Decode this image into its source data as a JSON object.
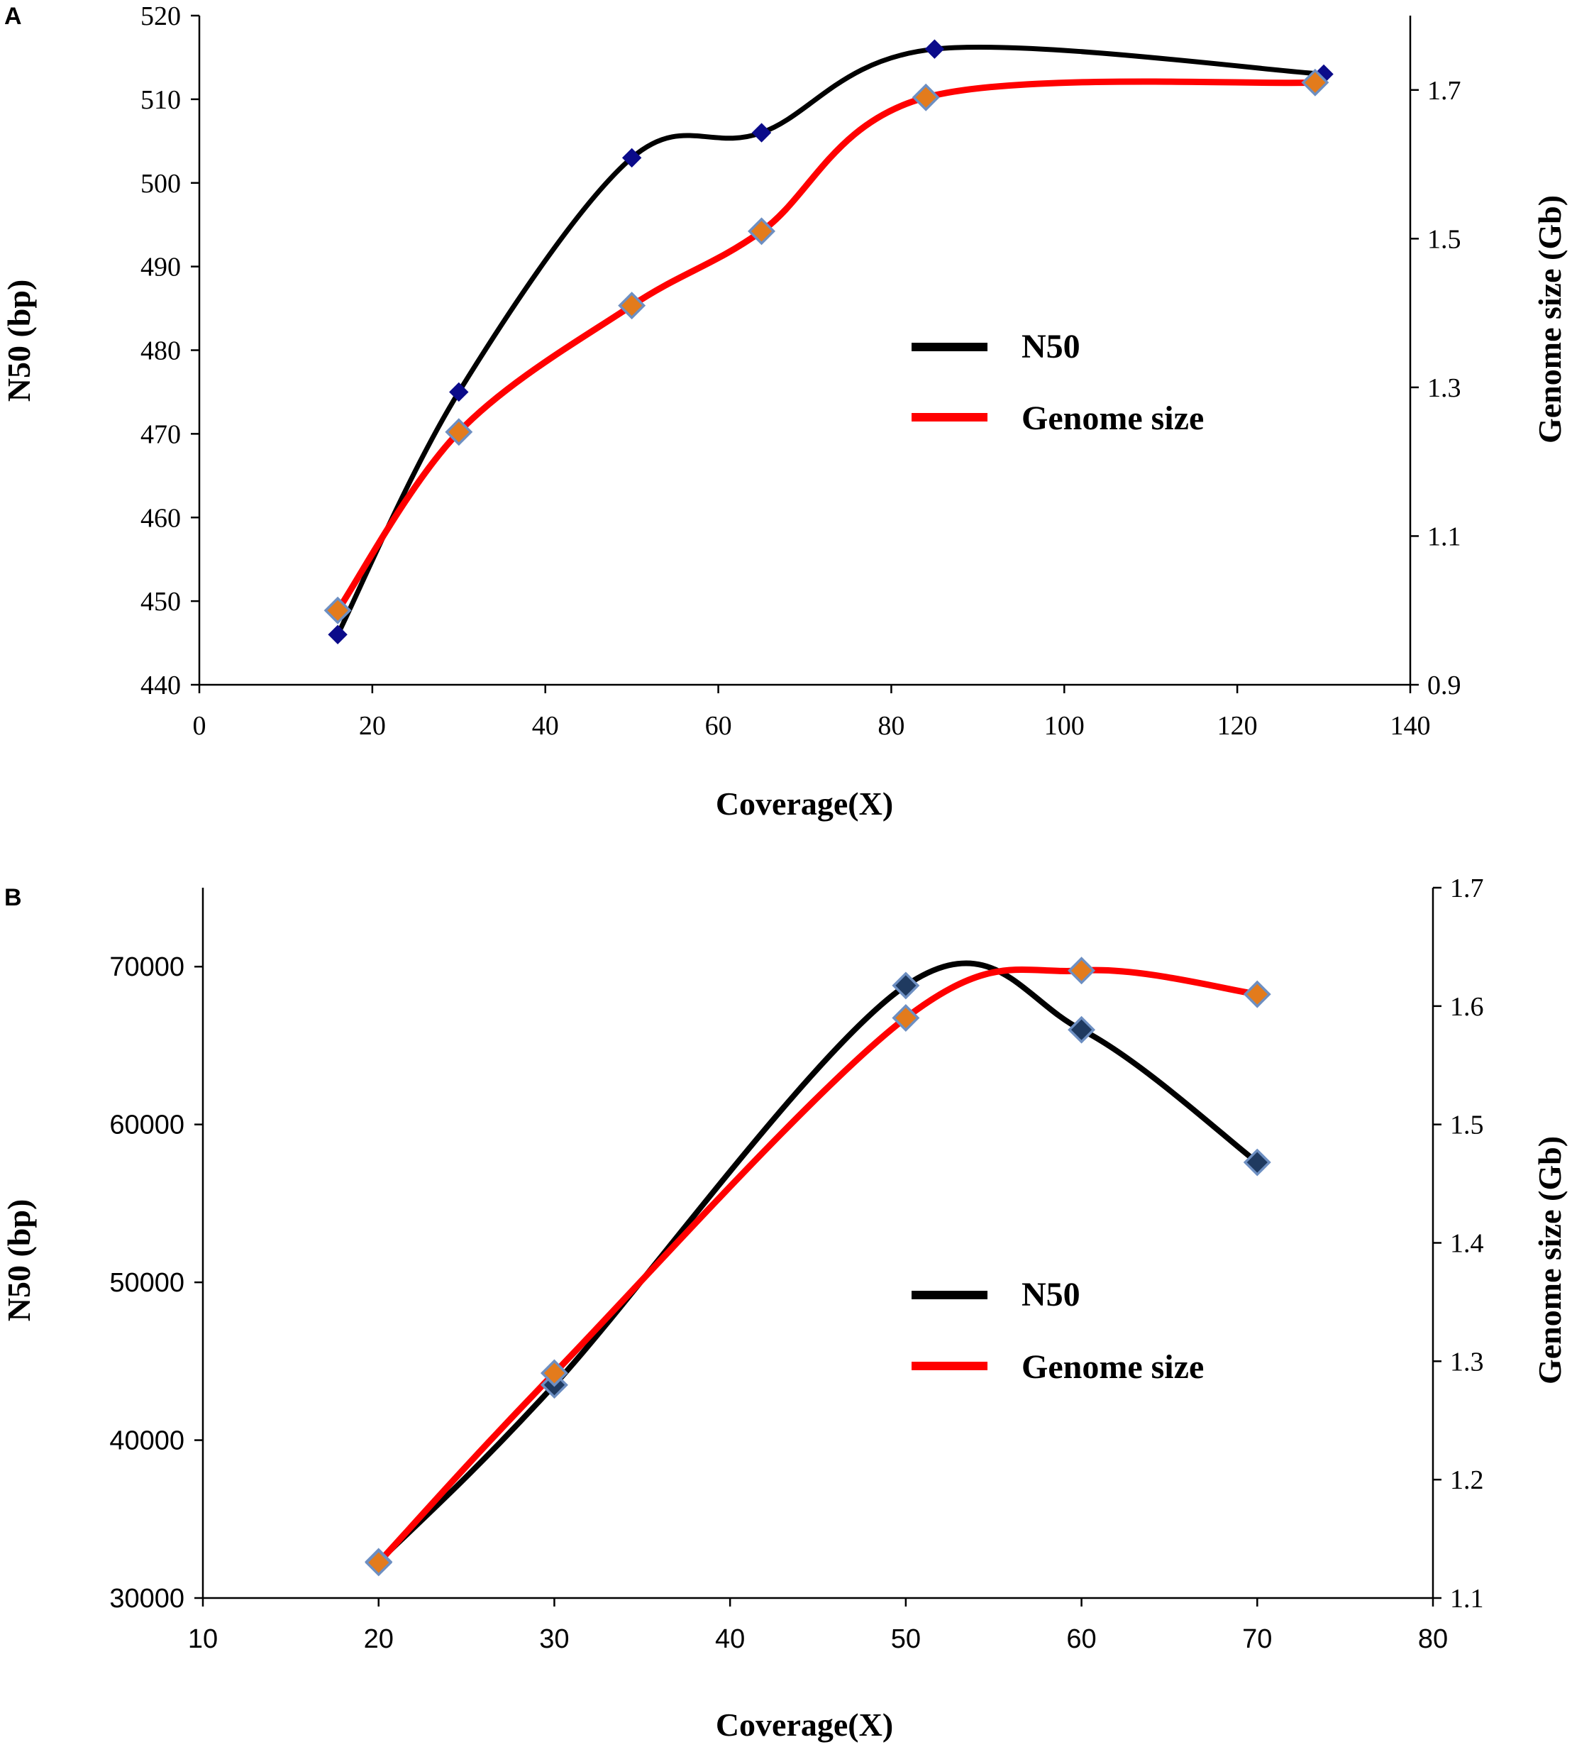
{
  "chart_data": [
    {
      "panel": "A",
      "type": "line",
      "title": "",
      "xlabel": "Coverage(X)",
      "ylabel": "N50 (bp)",
      "y2label": "Genome size (Gb)",
      "xlim": [
        0,
        140
      ],
      "ylim": [
        440,
        520
      ],
      "y2lim": [
        0.9,
        1.8
      ],
      "xticks": [
        "0",
        "20",
        "40",
        "60",
        "80",
        "100",
        "120",
        "140"
      ],
      "yticks": [
        "440",
        "450",
        "460",
        "470",
        "480",
        "490",
        "500",
        "510",
        "520"
      ],
      "y2ticks": [
        "0.9",
        "1.1",
        "1.3",
        "1.5",
        "1.7"
      ],
      "legend_position": "center-right",
      "series": [
        {
          "name": "N50",
          "axis": "left",
          "color": "#000000",
          "marker_color": "#0b0b8a",
          "points": [
            [
              16,
              446
            ],
            [
              30,
              475
            ],
            [
              50,
              503
            ],
            [
              65,
              506
            ],
            [
              85,
              516
            ],
            [
              130,
              513
            ]
          ]
        },
        {
          "name": "Genome size",
          "axis": "right",
          "color": "#ff0000",
          "marker_color": "#e37b1c",
          "points": [
            [
              16,
              1.0
            ],
            [
              30,
              1.24
            ],
            [
              50,
              1.41
            ],
            [
              65,
              1.51
            ],
            [
              84,
              1.69
            ],
            [
              129,
              1.71
            ]
          ]
        }
      ]
    },
    {
      "panel": "B",
      "type": "line",
      "title": "",
      "xlabel": "Coverage(X)",
      "ylabel": "N50 (bp)",
      "y2label": "Genome size (Gb)",
      "xlim": [
        10,
        80
      ],
      "ylim": [
        30000,
        75000
      ],
      "y2lim": [
        1.1,
        1.7
      ],
      "xticks": [
        "10",
        "20",
        "30",
        "40",
        "50",
        "60",
        "70",
        "80"
      ],
      "yticks": [
        "30000",
        "40000",
        "50000",
        "60000",
        "70000"
      ],
      "y2ticks": [
        "1.1",
        "1.2",
        "1.3",
        "1.4",
        "1.5",
        "1.6",
        "1.7"
      ],
      "legend_position": "center-right",
      "series": [
        {
          "name": "N50",
          "axis": "left",
          "color": "#000000",
          "marker_color": "#1f3a60",
          "points": [
            [
              20,
              32300
            ],
            [
              30,
              43500
            ],
            [
              50,
              68800
            ],
            [
              60,
              66000
            ],
            [
              70,
              57600
            ]
          ]
        },
        {
          "name": "Genome size",
          "axis": "right",
          "color": "#ff0000",
          "marker_color": "#e37b1c",
          "points": [
            [
              20,
              1.13
            ],
            [
              30,
              1.29
            ],
            [
              50,
              1.59
            ],
            [
              60,
              1.63
            ],
            [
              70,
              1.61
            ]
          ]
        }
      ]
    }
  ]
}
